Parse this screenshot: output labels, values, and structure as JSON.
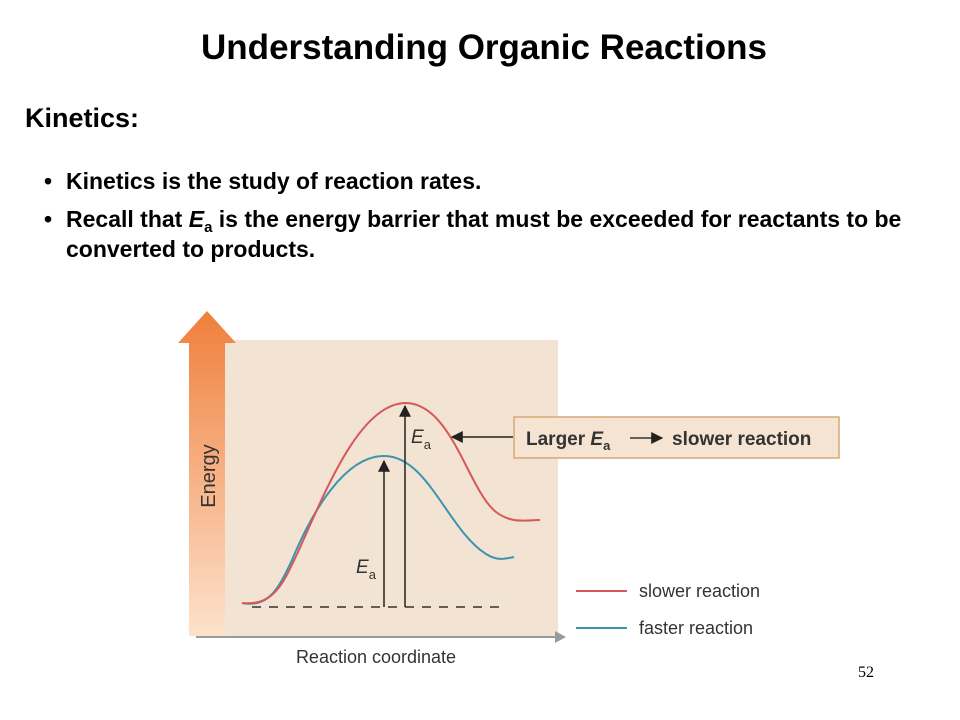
{
  "slide": {
    "title": "Understanding Organic Reactions",
    "section": "Kinetics:",
    "bullet_marker": "•",
    "bullets": [
      {
        "text": "Kinetics is the study of reaction rates."
      },
      {
        "pre": "Recall that ",
        "ea_letter": "E",
        "ea_sub": "a",
        "post": " is the energy barrier that must be exceeded for reactants to be converted to products."
      }
    ],
    "page_number": "52"
  },
  "diagram": {
    "y_axis_label": "Energy",
    "x_axis_label": "Reaction coordinate",
    "ea_letter": "E",
    "ea_sub": "a",
    "callout": {
      "prefix": "Larger ",
      "ea_letter": "E",
      "ea_sub": "a",
      "suffix": "slower reaction"
    },
    "legend": [
      {
        "label": "slower reaction",
        "color": "#d5585a"
      },
      {
        "label": "faster reaction",
        "color": "#3b94b0"
      }
    ],
    "colors": {
      "panel": "#f3e3d2",
      "axis_arrow_top": "#f07f3c",
      "axis_arrow_bottom": "#fde2cc",
      "x_axis": "#9a9a9a",
      "callout_fill": "#f6e4d2",
      "callout_border": "#d9a777"
    }
  }
}
